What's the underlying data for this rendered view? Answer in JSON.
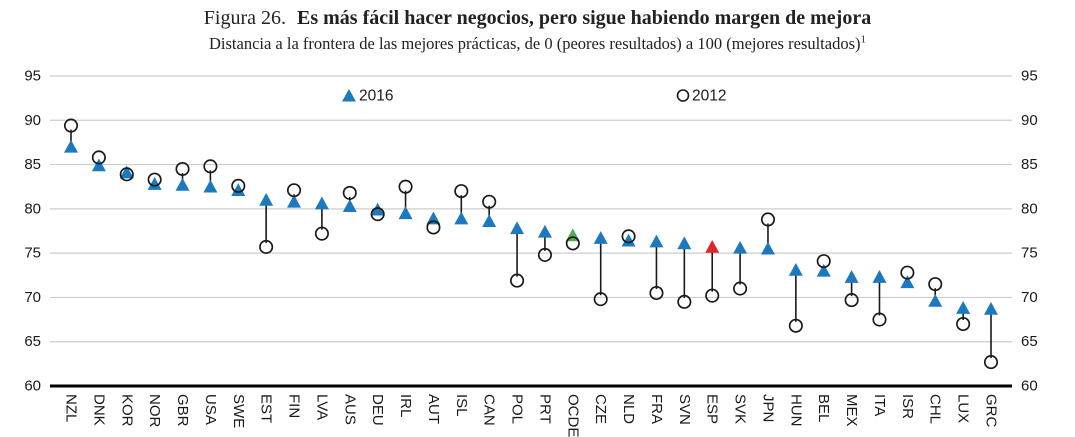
{
  "figure": {
    "title_prefix": "Figura 26.",
    "title_main": "Es más fácil hacer negocios, pero sigue habiendo margen de mejora",
    "subtitle": "Distancia a la frontera de las mejores prácticas, de 0 (peores resultados) a 100 (mejores resultados)",
    "subtitle_superscript": "1"
  },
  "legend": {
    "label_2016": "2016",
    "label_2012": "2012"
  },
  "colors": {
    "marker_2016": "#1b79bd",
    "highlight_oecd": "#57a757",
    "highlight_esp": "#e12528",
    "circle_ring": "#1a1a1a",
    "connector": "#1a1a1a",
    "gridline": "#cdcdcd",
    "axis": "#000000",
    "text": "#1a1a1a"
  },
  "chart_data": {
    "type": "scatter",
    "subtype": "dumbbell-comparison",
    "title": "Es más fácil hacer negocios, pero sigue habiendo margen de mejora",
    "subtitle": "Distancia a la frontera de las mejores prácticas, de 0 (peores resultados) a 100 (mejores resultados)",
    "xlabel": "",
    "ylabel": "",
    "ylim": [
      60,
      95
    ],
    "yticks": [
      60,
      65,
      70,
      75,
      80,
      85,
      90,
      95
    ],
    "grid": true,
    "legend_position": "top-center",
    "categories": [
      "NZL",
      "DNK",
      "KOR",
      "NOR",
      "GBR",
      "USA",
      "SWE",
      "EST",
      "FIN",
      "LVA",
      "AUS",
      "DEU",
      "IRL",
      "AUT",
      "ISL",
      "CAN",
      "POL",
      "PRT",
      "OCDE",
      "CZE",
      "NLD",
      "FRA",
      "SVN",
      "ESP",
      "SVK",
      "JPN",
      "HUN",
      "BEL",
      "MEX",
      "ITA",
      "ISR",
      "CHL",
      "LUX",
      "GRC"
    ],
    "series": [
      {
        "name": "2016",
        "marker": "triangle-filled",
        "values": [
          87.0,
          84.9,
          84.1,
          82.8,
          82.7,
          82.5,
          82.1,
          81.0,
          80.8,
          80.6,
          80.3,
          79.9,
          79.5,
          78.9,
          78.9,
          78.6,
          77.8,
          77.4,
          77.0,
          76.7,
          76.4,
          76.3,
          76.1,
          75.7,
          75.6,
          75.5,
          73.1,
          73.0,
          72.3,
          72.3,
          71.7,
          69.6,
          68.8,
          68.7
        ]
      },
      {
        "name": "2012",
        "marker": "circle-open",
        "values": [
          89.4,
          85.8,
          83.9,
          83.3,
          84.5,
          84.8,
          82.6,
          75.7,
          82.1,
          77.2,
          81.8,
          79.4,
          82.5,
          77.9,
          82.0,
          80.8,
          71.9,
          74.8,
          76.1,
          69.8,
          76.9,
          70.5,
          69.5,
          70.2,
          71.0,
          78.8,
          66.8,
          74.1,
          69.7,
          67.5,
          72.8,
          71.5,
          67.0,
          62.7
        ]
      }
    ],
    "highlighted_categories": {
      "OCDE": "#57a757",
      "ESP": "#e12528"
    }
  }
}
